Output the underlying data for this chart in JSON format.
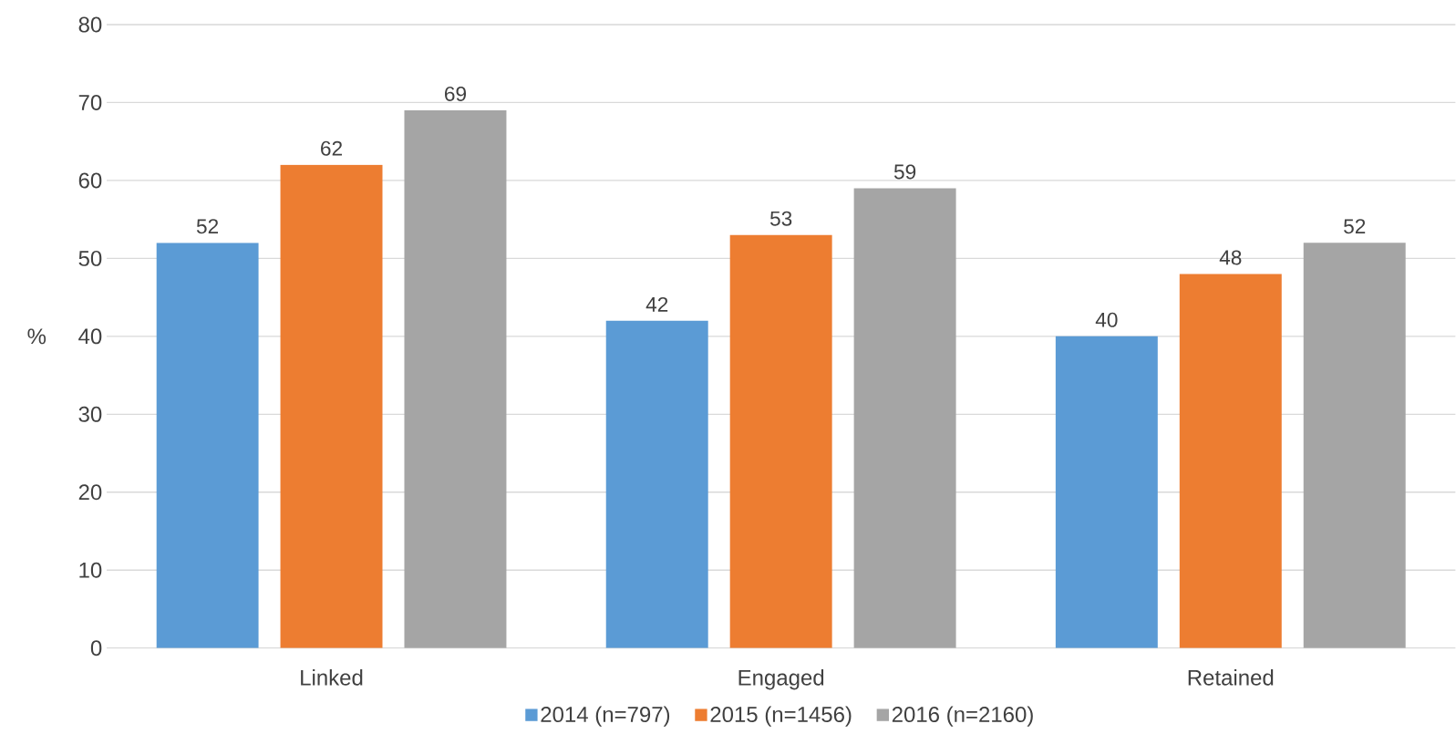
{
  "chart_data": {
    "type": "bar",
    "ylabel": "%",
    "categories": [
      "Linked",
      "Engaged",
      "Retained"
    ],
    "series": [
      {
        "name": "2014 (n=797)",
        "color": "#5b9bd5",
        "values": [
          52,
          42,
          40
        ]
      },
      {
        "name": "2015 (n=1456)",
        "color": "#ed7d31",
        "values": [
          62,
          53,
          48
        ]
      },
      {
        "name": "2016 (n=2160)",
        "color": "#a5a5a5",
        "values": [
          69,
          59,
          52
        ]
      }
    ],
    "ylim": [
      0,
      80
    ],
    "yticks": [
      0,
      10,
      20,
      30,
      40,
      50,
      60,
      70,
      80
    ],
    "grid": "y",
    "legend": "bottom",
    "data_labels": true
  }
}
